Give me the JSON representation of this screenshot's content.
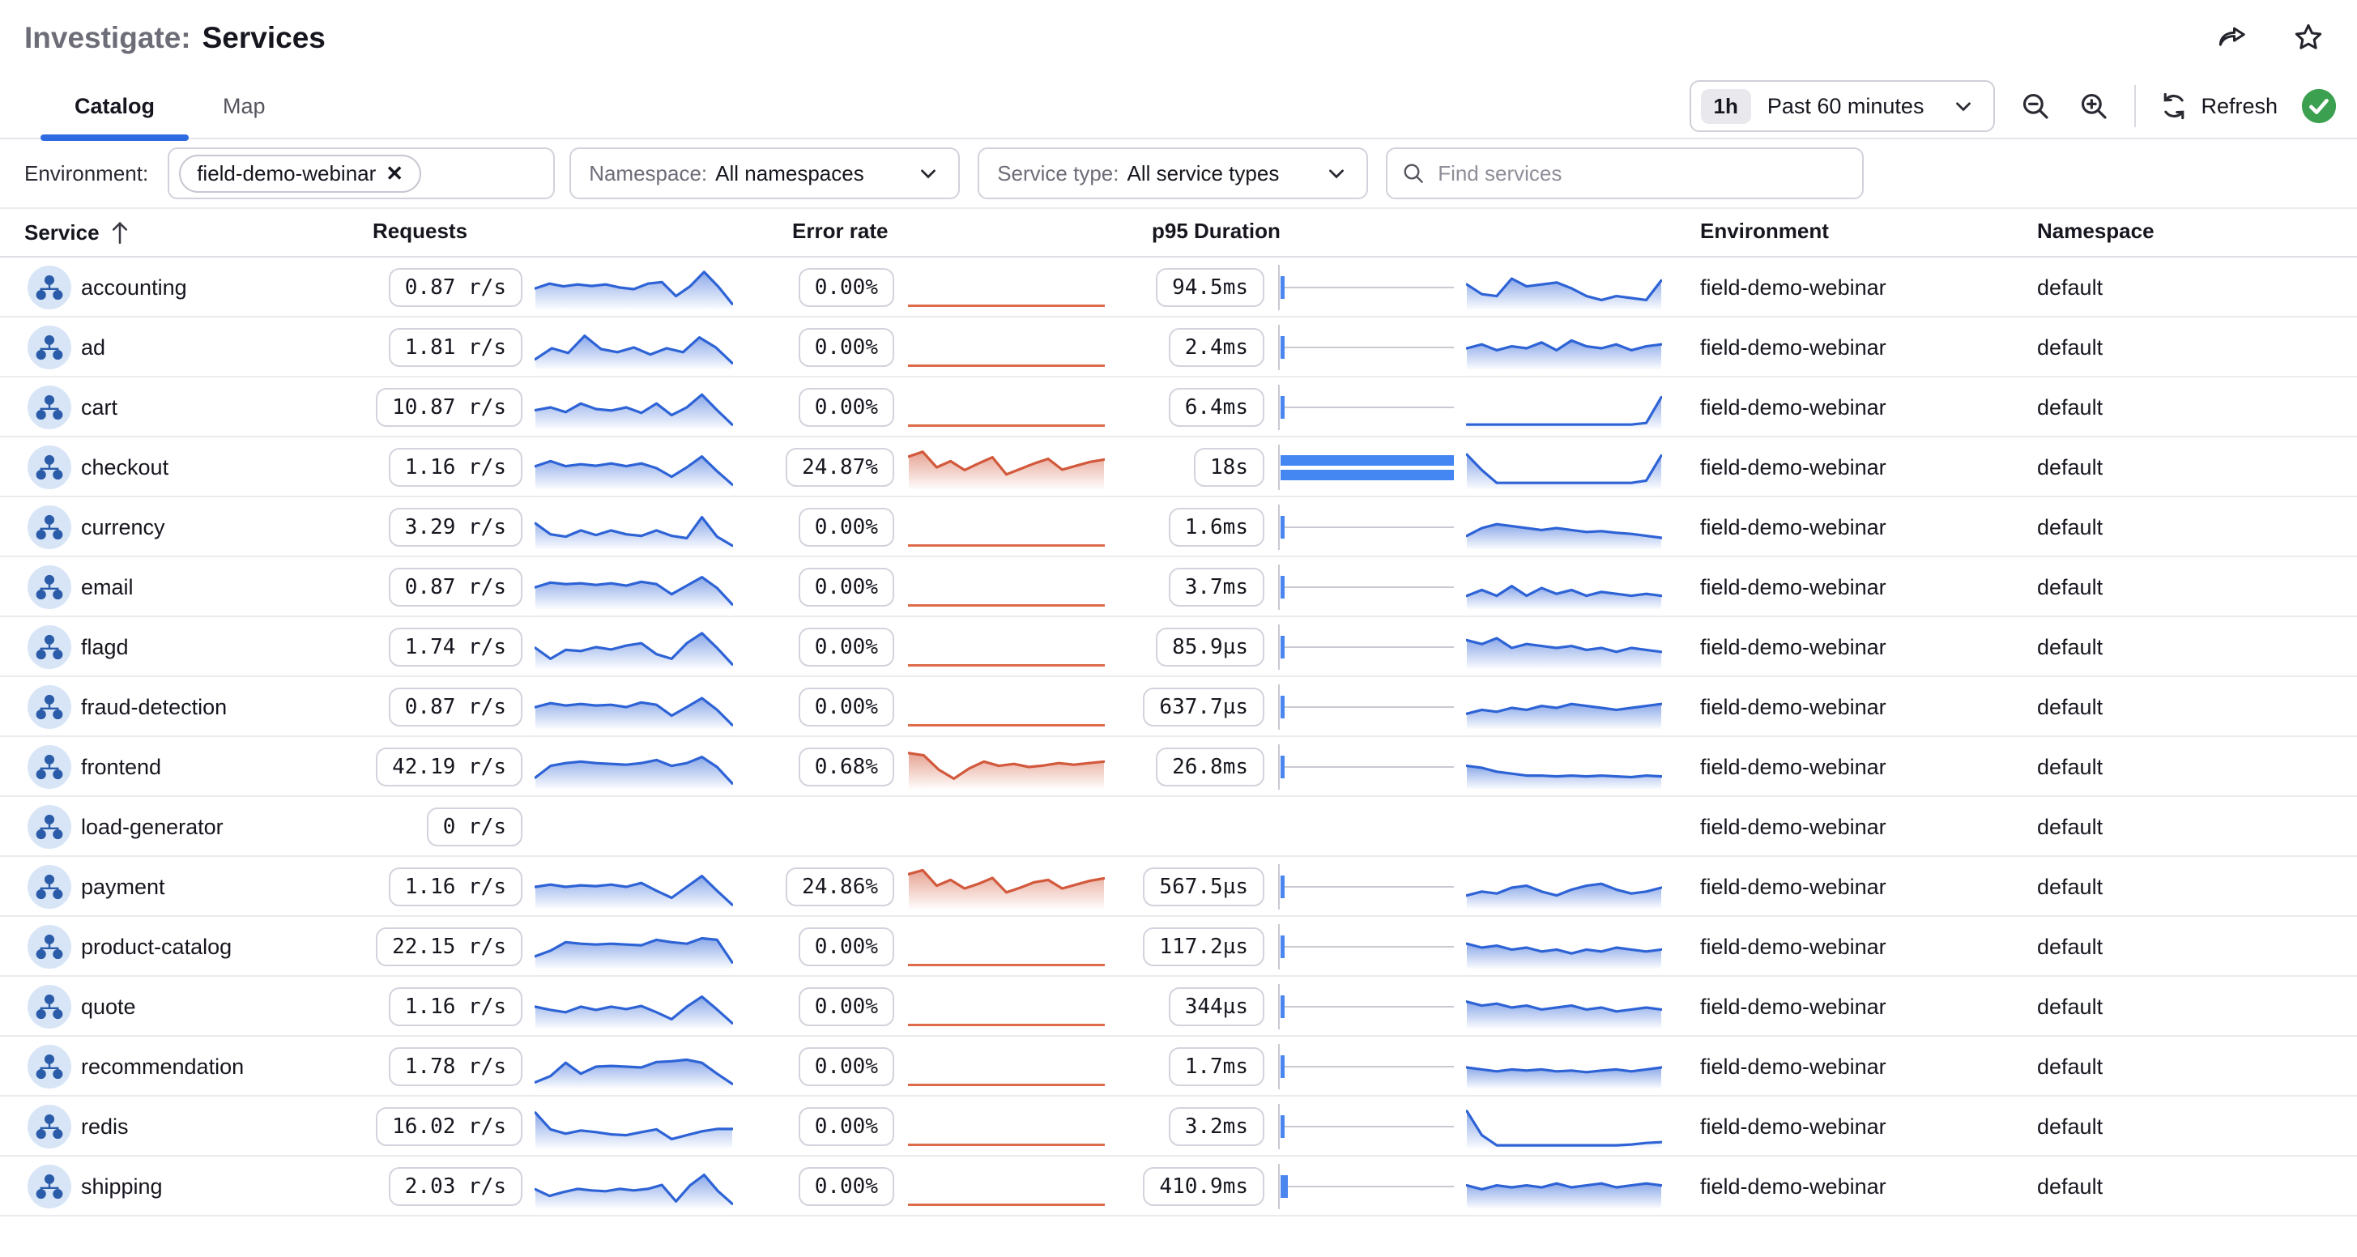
{
  "header": {
    "title_prefix": "Investigate:",
    "title": "Services"
  },
  "tabs": [
    {
      "label": "Catalog",
      "active": true
    },
    {
      "label": "Map",
      "active": false
    }
  ],
  "toolbar": {
    "time_badge": "1h",
    "time_range": "Past 60 minutes",
    "refresh_label": "Refresh"
  },
  "filters": {
    "environment_label": "Environment:",
    "environment_chip": "field-demo-webinar",
    "namespace_label": "Namespace:",
    "namespace_value": "All namespaces",
    "service_type_label": "Service type:",
    "service_type_value": "All service types",
    "search_placeholder": "Find services"
  },
  "table": {
    "columns": [
      "Service",
      "Requests",
      "Error rate",
      "p95 Duration",
      "Environment",
      "Namespace"
    ]
  },
  "colors": {
    "accent_blue": "#2e6be1",
    "spark_blue": "#2e63d6",
    "spark_red": "#d2593c",
    "duration_bar_blue": "#4486f2",
    "icon_circle_bg": "#d8e5f7",
    "icon_glyph": "#2b5ca9",
    "refresh_ok_green": "#3ba04f"
  },
  "services": [
    {
      "name": "accounting",
      "requests": "0.87 r/s",
      "error_rate": "0.00%",
      "p95": "94.5ms",
      "environment": "field-demo-webinar",
      "namespace": "default",
      "error_chart": "flat",
      "duration_bar": "tick",
      "req_spark": [
        0.5,
        0.62,
        0.55,
        0.6,
        0.56,
        0.6,
        0.52,
        0.48,
        0.62,
        0.66,
        0.3,
        0.55,
        0.92,
        0.55,
        0.1
      ],
      "err_spark": null,
      "p95_spark": [
        0.6,
        0.35,
        0.3,
        0.75,
        0.55,
        0.6,
        0.65,
        0.5,
        0.3,
        0.2,
        0.3,
        0.25,
        0.2,
        0.7
      ]
    },
    {
      "name": "ad",
      "requests": "1.81 r/s",
      "error_rate": "0.00%",
      "p95": "2.4ms",
      "environment": "field-demo-webinar",
      "namespace": "default",
      "error_chart": "flat",
      "duration_bar": "tick",
      "req_spark": [
        0.22,
        0.5,
        0.38,
        0.82,
        0.48,
        0.4,
        0.52,
        0.34,
        0.5,
        0.4,
        0.78,
        0.52,
        0.12
      ],
      "err_spark": null,
      "p95_spark": [
        0.5,
        0.6,
        0.45,
        0.55,
        0.5,
        0.65,
        0.45,
        0.7,
        0.55,
        0.5,
        0.6,
        0.45,
        0.55,
        0.6
      ]
    },
    {
      "name": "cart",
      "requests": "10.87 r/s",
      "error_rate": "0.00%",
      "p95": "6.4ms",
      "environment": "field-demo-webinar",
      "namespace": "default",
      "error_chart": "flat",
      "duration_bar": "tick",
      "req_spark": [
        0.45,
        0.52,
        0.4,
        0.62,
        0.48,
        0.44,
        0.52,
        0.38,
        0.62,
        0.32,
        0.52,
        0.85,
        0.45,
        0.08
      ],
      "err_spark": null,
      "p95_spark": [
        0.08,
        0.08,
        0.08,
        0.08,
        0.08,
        0.08,
        0.08,
        0.08,
        0.08,
        0.08,
        0.08,
        0.08,
        0.12,
        0.78
      ]
    },
    {
      "name": "checkout",
      "requests": "1.16 r/s",
      "error_rate": "24.87%",
      "p95": "18s",
      "environment": "field-demo-webinar",
      "namespace": "default",
      "error_chart": "area",
      "duration_bar": "full",
      "req_spark": [
        0.55,
        0.68,
        0.55,
        0.6,
        0.56,
        0.62,
        0.55,
        0.62,
        0.5,
        0.28,
        0.52,
        0.8,
        0.42,
        0.08
      ],
      "err_spark": [
        0.8,
        0.92,
        0.52,
        0.68,
        0.45,
        0.62,
        0.78,
        0.34,
        0.48,
        0.62,
        0.74,
        0.46,
        0.56,
        0.66,
        0.72
      ],
      "p95_spark": [
        0.85,
        0.45,
        0.12,
        0.12,
        0.12,
        0.12,
        0.12,
        0.12,
        0.12,
        0.12,
        0.12,
        0.12,
        0.18,
        0.82
      ]
    },
    {
      "name": "currency",
      "requests": "3.29 r/s",
      "error_rate": "0.00%",
      "p95": "1.6ms",
      "environment": "field-demo-webinar",
      "namespace": "default",
      "error_chart": "flat",
      "duration_bar": "tick",
      "req_spark": [
        0.62,
        0.34,
        0.28,
        0.44,
        0.32,
        0.44,
        0.34,
        0.3,
        0.44,
        0.3,
        0.24,
        0.78,
        0.28,
        0.05
      ],
      "err_spark": null,
      "p95_spark": [
        0.3,
        0.5,
        0.6,
        0.55,
        0.5,
        0.45,
        0.5,
        0.45,
        0.4,
        0.42,
        0.38,
        0.35,
        0.3,
        0.25
      ]
    },
    {
      "name": "email",
      "requests": "0.87 r/s",
      "error_rate": "0.00%",
      "p95": "3.7ms",
      "environment": "field-demo-webinar",
      "namespace": "default",
      "error_chart": "flat",
      "duration_bar": "tick",
      "req_spark": [
        0.52,
        0.64,
        0.6,
        0.62,
        0.58,
        0.62,
        0.56,
        0.66,
        0.6,
        0.34,
        0.56,
        0.78,
        0.5,
        0.08
      ],
      "err_spark": null,
      "p95_spark": [
        0.3,
        0.45,
        0.3,
        0.55,
        0.3,
        0.5,
        0.35,
        0.45,
        0.3,
        0.4,
        0.35,
        0.3,
        0.35,
        0.3
      ]
    },
    {
      "name": "flagd",
      "requests": "1.74 r/s",
      "error_rate": "0.00%",
      "p95": "85.9µs",
      "environment": "field-demo-webinar",
      "namespace": "default",
      "error_chart": "flat",
      "duration_bar": "tick",
      "req_spark": [
        0.5,
        0.22,
        0.45,
        0.42,
        0.52,
        0.46,
        0.56,
        0.62,
        0.34,
        0.22,
        0.62,
        0.88,
        0.5,
        0.08
      ],
      "err_spark": null,
      "p95_spark": [
        0.7,
        0.6,
        0.75,
        0.5,
        0.6,
        0.55,
        0.5,
        0.55,
        0.45,
        0.5,
        0.4,
        0.5,
        0.45,
        0.4
      ]
    },
    {
      "name": "fraud-detection",
      "requests": "0.87 r/s",
      "error_rate": "0.00%",
      "p95": "637.7µs",
      "environment": "field-demo-webinar",
      "namespace": "default",
      "error_chart": "flat",
      "duration_bar": "tick",
      "req_spark": [
        0.52,
        0.62,
        0.56,
        0.6,
        0.56,
        0.58,
        0.52,
        0.64,
        0.58,
        0.3,
        0.52,
        0.75,
        0.45,
        0.06
      ],
      "err_spark": null,
      "p95_spark": [
        0.35,
        0.45,
        0.4,
        0.5,
        0.45,
        0.55,
        0.5,
        0.6,
        0.55,
        0.5,
        0.45,
        0.5,
        0.55,
        0.6
      ]
    },
    {
      "name": "frontend",
      "requests": "42.19 r/s",
      "error_rate": "0.68%",
      "p95": "26.8ms",
      "environment": "field-demo-webinar",
      "namespace": "default",
      "error_chart": "area",
      "duration_bar": "tick",
      "req_spark": [
        0.25,
        0.55,
        0.62,
        0.66,
        0.62,
        0.6,
        0.58,
        0.62,
        0.7,
        0.55,
        0.62,
        0.78,
        0.52,
        0.1
      ],
      "err_spark": [
        0.88,
        0.82,
        0.45,
        0.22,
        0.48,
        0.66,
        0.55,
        0.6,
        0.52,
        0.56,
        0.62,
        0.58,
        0.62,
        0.66
      ],
      "p95_spark": [
        0.55,
        0.5,
        0.4,
        0.35,
        0.3,
        0.3,
        0.28,
        0.3,
        0.28,
        0.3,
        0.28,
        0.26,
        0.3,
        0.28
      ]
    },
    {
      "name": "load-generator",
      "requests": "0 r/s",
      "error_rate": null,
      "p95": null,
      "environment": "field-demo-webinar",
      "namespace": "default",
      "error_chart": "none",
      "duration_bar": "none",
      "req_spark": null,
      "err_spark": null,
      "p95_spark": null
    },
    {
      "name": "payment",
      "requests": "1.16 r/s",
      "error_rate": "24.86%",
      "p95": "567.5µs",
      "environment": "field-demo-webinar",
      "namespace": "default",
      "error_chart": "area",
      "duration_bar": "tick",
      "req_spark": [
        0.52,
        0.58,
        0.52,
        0.56,
        0.54,
        0.58,
        0.52,
        0.62,
        0.42,
        0.24,
        0.52,
        0.8,
        0.42,
        0.06
      ],
      "err_spark": [
        0.85,
        0.95,
        0.55,
        0.7,
        0.48,
        0.6,
        0.75,
        0.38,
        0.5,
        0.64,
        0.7,
        0.48,
        0.58,
        0.68,
        0.74
      ],
      "p95_spark": [
        0.3,
        0.4,
        0.35,
        0.5,
        0.55,
        0.4,
        0.3,
        0.45,
        0.55,
        0.6,
        0.45,
        0.35,
        0.4,
        0.5
      ]
    },
    {
      "name": "product-catalog",
      "requests": "22.15 r/s",
      "error_rate": "0.00%",
      "p95": "117.2µs",
      "environment": "field-demo-webinar",
      "namespace": "default",
      "error_chart": "flat",
      "duration_bar": "tick",
      "req_spark": [
        0.28,
        0.42,
        0.64,
        0.6,
        0.58,
        0.6,
        0.58,
        0.56,
        0.7,
        0.64,
        0.6,
        0.74,
        0.7,
        0.12
      ],
      "err_spark": null,
      "p95_spark": [
        0.6,
        0.5,
        0.55,
        0.45,
        0.5,
        0.4,
        0.45,
        0.35,
        0.45,
        0.4,
        0.5,
        0.45,
        0.4,
        0.45
      ]
    },
    {
      "name": "quote",
      "requests": "1.16 r/s",
      "error_rate": "0.00%",
      "p95": "344µs",
      "environment": "field-demo-webinar",
      "namespace": "default",
      "error_chart": "flat",
      "duration_bar": "tick",
      "req_spark": [
        0.52,
        0.44,
        0.38,
        0.52,
        0.44,
        0.52,
        0.46,
        0.54,
        0.38,
        0.2,
        0.52,
        0.78,
        0.45,
        0.1
      ],
      "err_spark": null,
      "p95_spark": [
        0.65,
        0.55,
        0.6,
        0.5,
        0.55,
        0.45,
        0.5,
        0.55,
        0.45,
        0.5,
        0.4,
        0.45,
        0.5,
        0.45
      ]
    },
    {
      "name": "recommendation",
      "requests": "1.78 r/s",
      "error_rate": "0.00%",
      "p95": "1.7ms",
      "environment": "field-demo-webinar",
      "namespace": "default",
      "error_chart": "flat",
      "duration_bar": "tick",
      "req_spark": [
        0.12,
        0.28,
        0.62,
        0.34,
        0.52,
        0.54,
        0.52,
        0.5,
        0.64,
        0.66,
        0.7,
        0.62,
        0.34,
        0.08
      ],
      "err_spark": null,
      "p95_spark": [
        0.5,
        0.45,
        0.4,
        0.45,
        0.42,
        0.45,
        0.4,
        0.42,
        0.38,
        0.42,
        0.45,
        0.4,
        0.45,
        0.5
      ]
    },
    {
      "name": "redis",
      "requests": "16.02 r/s",
      "error_rate": "0.00%",
      "p95": "3.2ms",
      "environment": "field-demo-webinar",
      "namespace": "default",
      "error_chart": "flat",
      "duration_bar": "tick",
      "req_spark": [
        0.88,
        0.45,
        0.34,
        0.42,
        0.38,
        0.32,
        0.3,
        0.38,
        0.45,
        0.2,
        0.3,
        0.4,
        0.46,
        0.46
      ],
      "err_spark": null,
      "p95_spark": [
        0.92,
        0.3,
        0.04,
        0.04,
        0.04,
        0.04,
        0.04,
        0.04,
        0.04,
        0.04,
        0.04,
        0.06,
        0.1,
        0.12
      ]
    },
    {
      "name": "shipping",
      "requests": "2.03 r/s",
      "error_rate": "0.00%",
      "p95": "410.9ms",
      "environment": "field-demo-webinar",
      "namespace": "default",
      "error_chart": "flat",
      "duration_bar": "tick-wide",
      "req_spark": [
        0.45,
        0.28,
        0.38,
        0.46,
        0.42,
        0.4,
        0.46,
        0.42,
        0.46,
        0.56,
        0.14,
        0.55,
        0.82,
        0.4,
        0.08
      ],
      "err_spark": null,
      "p95_spark": [
        0.55,
        0.45,
        0.55,
        0.5,
        0.55,
        0.5,
        0.6,
        0.5,
        0.55,
        0.6,
        0.5,
        0.55,
        0.6,
        0.55
      ]
    }
  ]
}
